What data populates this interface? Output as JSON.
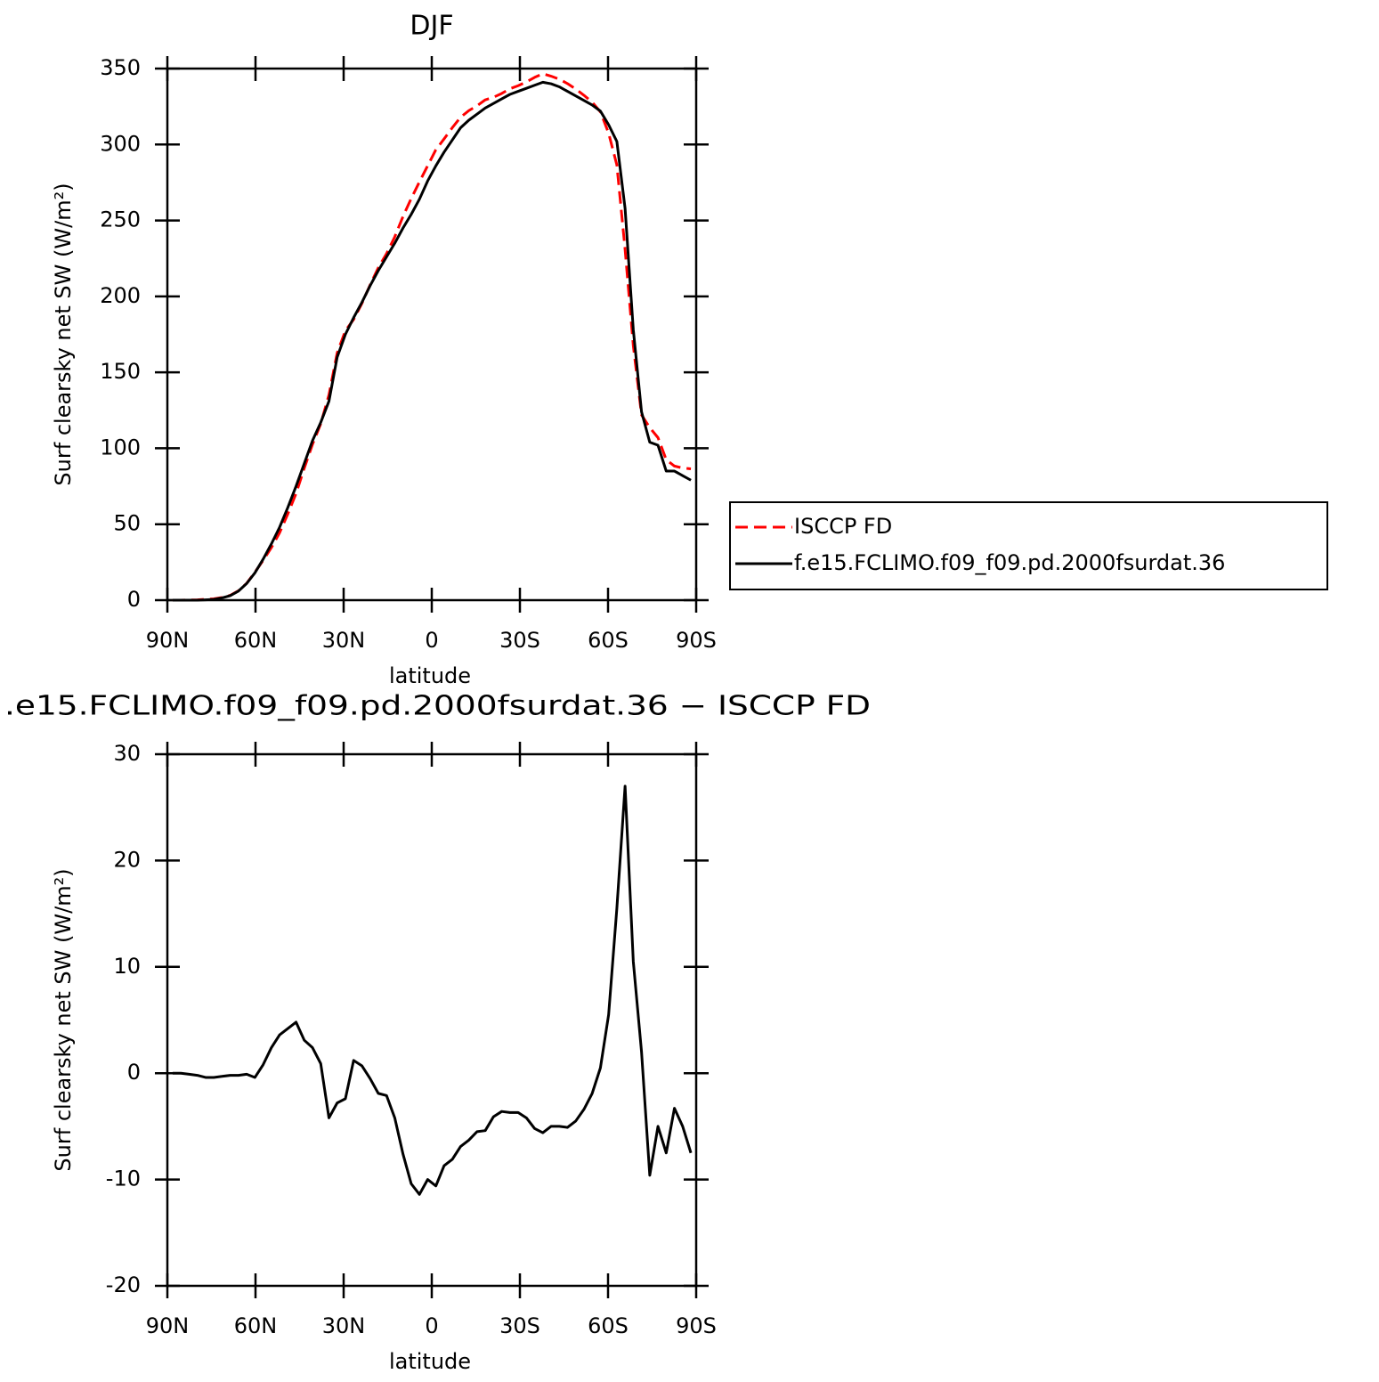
{
  "chart_data": [
    {
      "type": "line",
      "title": "DJF",
      "xlabel": "latitude",
      "ylabel": "Surf clearsky net SW (W/m²)",
      "x": [
        88.2,
        85.4,
        82.6,
        79.8,
        77.0,
        74.2,
        71.4,
        68.6,
        65.8,
        63.0,
        60.2,
        57.4,
        54.6,
        51.8,
        49.0,
        46.2,
        43.4,
        40.6,
        37.8,
        35.0,
        32.2,
        29.4,
        26.6,
        23.8,
        21.0,
        18.2,
        15.4,
        12.6,
        9.8,
        7.0,
        4.2,
        1.4,
        -1.4,
        -4.2,
        -7.0,
        -9.8,
        -12.6,
        -15.4,
        -18.2,
        -21.0,
        -23.8,
        -26.6,
        -29.4,
        -32.2,
        -35.0,
        -37.8,
        -40.6,
        -43.4,
        -46.2,
        -49.0,
        -51.8,
        -54.6,
        -57.4,
        -60.2,
        -63.0,
        -65.8,
        -68.6,
        -71.4,
        -74.2,
        -77.0,
        -79.8,
        -82.6,
        -85.4,
        -88.2
      ],
      "xlim": [
        90,
        -90
      ],
      "xticks": [
        {
          "value": 90,
          "label": "90N"
        },
        {
          "value": 60,
          "label": "60N"
        },
        {
          "value": 30,
          "label": "30N"
        },
        0,
        {
          "value": -30,
          "label": "30S"
        },
        {
          "value": -60,
          "label": "60S"
        },
        {
          "value": -90,
          "label": "90S"
        }
      ],
      "ylim": [
        0,
        350
      ],
      "yticks": [
        0,
        50,
        100,
        150,
        200,
        250,
        300,
        350
      ],
      "legend": "right",
      "series": [
        {
          "name": "ISCCP FD",
          "color": "#ff0000",
          "linestyle": "dashed",
          "values": [
            0,
            0,
            0.1,
            0.2,
            0.6,
            0.9,
            1.8,
            3.2,
            6.2,
            11.1,
            18.4,
            26.2,
            34.6,
            44.4,
            56.8,
            70.2,
            86.9,
            102.6,
            116.1,
            135.2,
            162.8,
            177.4,
            184.8,
            195.3,
            207.5,
            218.9,
            228.1,
            239.2,
            252.6,
            264.4,
            275.4,
            286,
            296.6,
            303.7,
            311.1,
            317.9,
            322.3,
            325.5,
            329.4,
            331.1,
            333.6,
            336.7,
            338.7,
            341.2,
            344.2,
            346.6,
            345,
            343,
            340.1,
            336.5,
            332.4,
            327.9,
            321.5,
            307.5,
            286.5,
            231,
            167.5,
            122,
            113.6,
            107,
            92.5,
            88.3,
            87,
            86.5
          ]
        },
        {
          "name": "f.e15.FCLIMO.f09_f09.pd.2000fsurdat.36",
          "color": "#000000",
          "linestyle": "solid",
          "values": [
            0,
            0,
            0,
            0,
            0.2,
            0.5,
            1.5,
            3,
            6,
            11,
            18,
            27,
            37,
            48,
            61,
            75,
            90,
            105,
            117,
            131,
            160,
            175,
            186,
            196,
            207,
            217,
            226,
            235,
            245,
            254,
            264,
            276,
            286,
            295,
            303,
            311,
            316,
            320,
            324,
            327,
            330,
            333,
            335,
            337,
            339,
            341,
            340,
            338,
            335,
            332,
            329,
            326,
            322,
            313,
            302,
            258,
            178,
            124,
            104,
            102,
            85,
            85,
            82,
            79
          ]
        }
      ]
    },
    {
      "type": "line",
      "title": ".e15.FCLIMO.f09_f09.pd.2000fsurdat.36 − ISCCP FD",
      "xlabel": "latitude",
      "ylabel": "Surf clearsky net SW (W/m²)",
      "x": [
        88.2,
        85.4,
        82.6,
        79.8,
        77.0,
        74.2,
        71.4,
        68.6,
        65.8,
        63.0,
        60.2,
        57.4,
        54.6,
        51.8,
        49.0,
        46.2,
        43.4,
        40.6,
        37.8,
        35.0,
        32.2,
        29.4,
        26.6,
        23.8,
        21.0,
        18.2,
        15.4,
        12.6,
        9.8,
        7.0,
        4.2,
        1.4,
        -1.4,
        -4.2,
        -7.0,
        -9.8,
        -12.6,
        -15.4,
        -18.2,
        -21.0,
        -23.8,
        -26.6,
        -29.4,
        -32.2,
        -35.0,
        -37.8,
        -40.6,
        -43.4,
        -46.2,
        -49.0,
        -51.8,
        -54.6,
        -57.4,
        -60.2,
        -63.0,
        -65.8,
        -68.6,
        -71.4,
        -74.2,
        -77.0,
        -79.8,
        -82.6,
        -85.4,
        -88.2
      ],
      "xlim": [
        90,
        -90
      ],
      "xticks": [
        {
          "value": 90,
          "label": "90N"
        },
        {
          "value": 60,
          "label": "60N"
        },
        {
          "value": 30,
          "label": "30N"
        },
        0,
        {
          "value": -30,
          "label": "30S"
        },
        {
          "value": -60,
          "label": "60S"
        },
        {
          "value": -90,
          "label": "90S"
        }
      ],
      "ylim": [
        -20,
        30
      ],
      "yticks": [
        -20,
        -10,
        0,
        10,
        20,
        30
      ],
      "series": [
        {
          "color": "#000000",
          "linestyle": "solid",
          "values": [
            0,
            0,
            -0.1,
            -0.2,
            -0.4,
            -0.4,
            -0.3,
            -0.2,
            -0.2,
            -0.1,
            -0.4,
            0.8,
            2.4,
            3.6,
            4.2,
            4.8,
            3.1,
            2.4,
            0.9,
            -4.2,
            -2.8,
            -2.4,
            1.2,
            0.7,
            -0.5,
            -1.9,
            -2.1,
            -4.2,
            -7.6,
            -10.4,
            -11.4,
            -10,
            -10.6,
            -8.7,
            -8.1,
            -6.9,
            -6.3,
            -5.5,
            -5.4,
            -4.1,
            -3.6,
            -3.7,
            -3.7,
            -4.2,
            -5.2,
            -5.6,
            -5,
            -5,
            -5.1,
            -4.5,
            -3.4,
            -1.9,
            0.5,
            5.5,
            15.5,
            27,
            10.5,
            2,
            -9.6,
            -5,
            -7.5,
            -3.3,
            -5,
            -7.5
          ]
        }
      ]
    }
  ]
}
